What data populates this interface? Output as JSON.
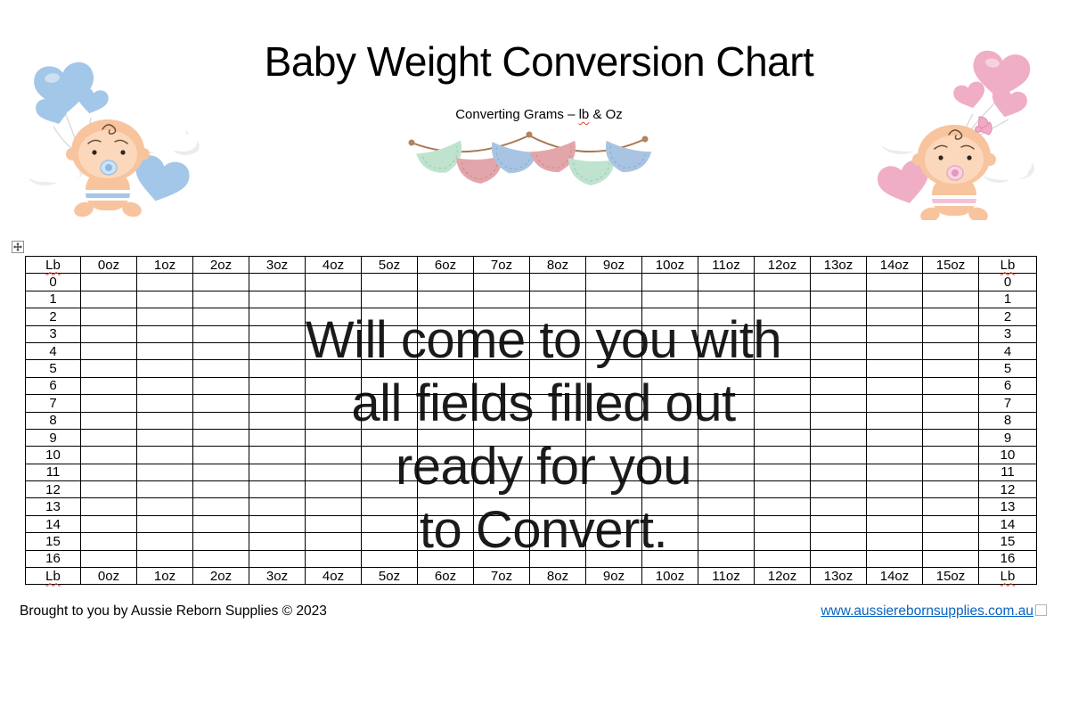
{
  "header": {
    "title": "Baby Weight Conversion Chart",
    "subtitle_prefix": "Converting Grams – ",
    "subtitle_word": "lb",
    "subtitle_suffix": " & Oz"
  },
  "table": {
    "col_headers": [
      "Lb",
      "0oz",
      "1oz",
      "2oz",
      "3oz",
      "4oz",
      "5oz",
      "6oz",
      "7oz",
      "8oz",
      "9oz",
      "10oz",
      "11oz",
      "12oz",
      "13oz",
      "14oz",
      "15oz",
      "Lb"
    ],
    "row_labels": [
      "0",
      "1",
      "2",
      "3",
      "4",
      "5",
      "6",
      "7",
      "8",
      "9",
      "10",
      "11",
      "12",
      "13",
      "14",
      "15",
      "16"
    ],
    "misspelled_header": "Lb",
    "cells_empty": true
  },
  "overlay": {
    "lines": [
      "Will come to you with",
      "all fields filled out",
      "ready for you",
      "to Convert."
    ]
  },
  "footer": {
    "credit": "Brought to you by Aussie Reborn Supplies © 2023",
    "link": "www.aussierebornsupplies.com.au"
  },
  "icons": {
    "table_move_handle": "four-direction move cross in a square",
    "anchor_box": "small empty square outline",
    "left_artwork": "baby with blue heart balloons and clouds",
    "right_artwork": "baby with pink heart balloons, bow and clouds",
    "banner": "watercolor bunting flags green/pink/blue on brown string"
  },
  "colors": {
    "link_blue": "#0B63C1",
    "squiggle_red": "#E03C31",
    "balloon_blue": "#A3C7E8",
    "balloon_pink": "#EFAEC5",
    "bunting_green": "#BFE3CF",
    "bunting_pink": "#E2A6AA",
    "bunting_blue": "#A8C4E2",
    "string_brown": "#A97855"
  }
}
